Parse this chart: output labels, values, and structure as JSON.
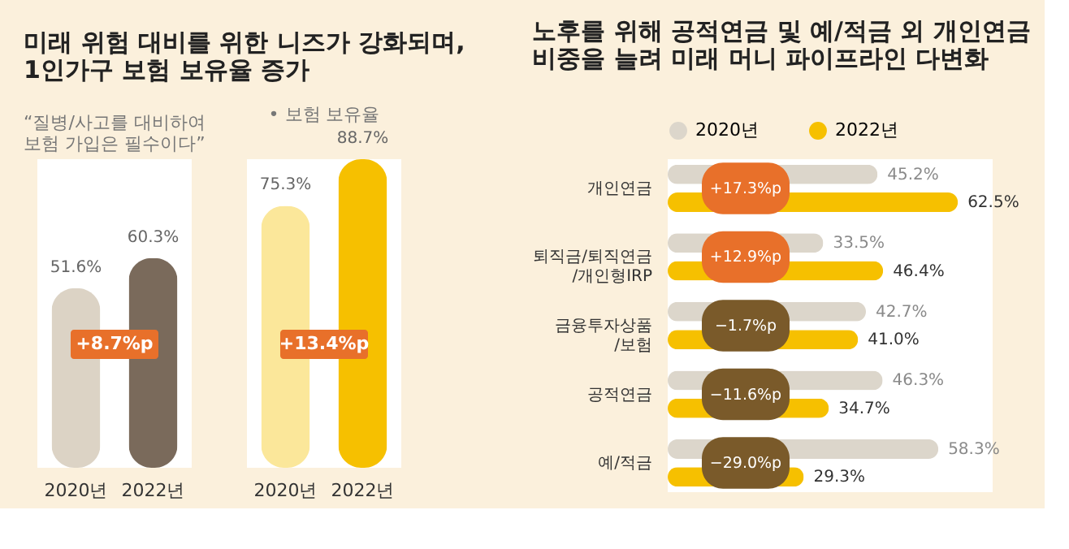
{
  "chart_data": [
    {
      "type": "bar",
      "title": [
        "미래 위험 대비를 위한 니즈가 강화되며,",
        "1인가구 보험 보유율 증가"
      ],
      "subtitle": [
        "“질병/사고를 대비하여",
        "보험 가입은 필수이다”"
      ],
      "categories": [
        "2020년",
        "2022년"
      ],
      "values": [
        51.6,
        60.3
      ],
      "value_labels": [
        "51.6%",
        "60.3%"
      ],
      "colors": [
        "#dcd3c5",
        "#7a6a5b"
      ],
      "annotations": [
        "+8.7%p"
      ]
    },
    {
      "type": "bar",
      "subtitle": "• 보험 보유율",
      "categories": [
        "2020년",
        "2022년"
      ],
      "values": [
        75.3,
        88.7
      ],
      "value_labels": [
        "75.3%",
        "88.7%"
      ],
      "colors": [
        "#fbe79a",
        "#f6c000"
      ],
      "annotations": [
        "+13.4%p"
      ]
    },
    {
      "type": "bar",
      "orientation": "horizontal",
      "title": [
        "노후를 위해 공적연금 및 예/적금 외 개인연금",
        "비중을 늘려 미래 머니 파이프라인 다변화"
      ],
      "categories": [
        "개인연금",
        "퇴직금/퇴직연금\n/개인형IRP",
        "금융투자상품\n/보험",
        "공적연금",
        "예/적금"
      ],
      "series": [
        {
          "name": "2020년",
          "color": "#dcd6cb",
          "values": [
            45.2,
            33.5,
            42.7,
            46.3,
            58.3
          ],
          "value_labels": [
            "45.2%",
            "33.5%",
            "42.7%",
            "46.3%",
            "58.3%"
          ]
        },
        {
          "name": "2022년",
          "color": "#f6c000",
          "values": [
            62.5,
            46.4,
            41.0,
            34.7,
            29.3
          ],
          "value_labels": [
            "62.5%",
            "46.4%",
            "41.0%",
            "34.7%",
            "29.3%"
          ]
        }
      ],
      "legend": "top left",
      "annotations": [
        "+17.3%p",
        "+12.9%p",
        "−1.7%p",
        "−11.6%p",
        "−29.0%p"
      ]
    }
  ]
}
